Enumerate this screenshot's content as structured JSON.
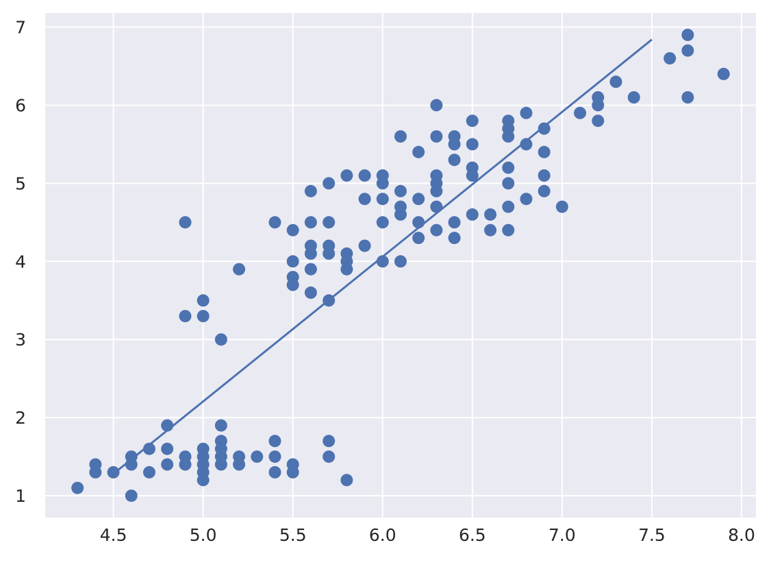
{
  "chart_data": {
    "type": "scatter",
    "title": "",
    "xlabel": "",
    "ylabel": "",
    "xlim": [
      4.12,
      8.08
    ],
    "ylim": [
      0.72,
      7.18
    ],
    "x_ticks": [
      4.5,
      5.0,
      5.5,
      6.0,
      6.5,
      7.0,
      7.5,
      8.0
    ],
    "x_tick_labels": [
      "4.5",
      "5.0",
      "5.5",
      "6.0",
      "6.5",
      "7.0",
      "7.5",
      "8.0"
    ],
    "y_ticks": [
      1,
      2,
      3,
      4,
      5,
      6,
      7
    ],
    "y_tick_labels": [
      "1",
      "2",
      "3",
      "4",
      "5",
      "6",
      "7"
    ],
    "grid": true,
    "colors": {
      "background": "#eaeaf2",
      "grid": "#ffffff",
      "series": "#4c72b0"
    },
    "series": [
      {
        "type": "scatter",
        "points": [
          [
            4.3,
            1.1
          ],
          [
            4.4,
            1.3
          ],
          [
            4.4,
            1.4
          ],
          [
            4.5,
            1.3
          ],
          [
            4.6,
            1.0
          ],
          [
            4.6,
            1.4
          ],
          [
            4.6,
            1.5
          ],
          [
            4.7,
            1.3
          ],
          [
            4.7,
            1.6
          ],
          [
            4.8,
            1.4
          ],
          [
            4.8,
            1.6
          ],
          [
            4.8,
            1.9
          ],
          [
            4.9,
            1.4
          ],
          [
            4.9,
            1.5
          ],
          [
            4.9,
            3.3
          ],
          [
            4.9,
            4.5
          ],
          [
            5.0,
            1.2
          ],
          [
            5.0,
            1.3
          ],
          [
            5.0,
            1.4
          ],
          [
            5.0,
            1.5
          ],
          [
            5.0,
            1.6
          ],
          [
            5.0,
            3.3
          ],
          [
            5.0,
            3.5
          ],
          [
            5.1,
            1.4
          ],
          [
            5.1,
            1.5
          ],
          [
            5.1,
            1.6
          ],
          [
            5.1,
            1.7
          ],
          [
            5.1,
            1.9
          ],
          [
            5.1,
            3.0
          ],
          [
            5.2,
            1.4
          ],
          [
            5.2,
            1.5
          ],
          [
            5.2,
            3.9
          ],
          [
            5.3,
            1.5
          ],
          [
            5.4,
            1.3
          ],
          [
            5.4,
            1.5
          ],
          [
            5.4,
            1.7
          ],
          [
            5.4,
            4.5
          ],
          [
            5.5,
            1.3
          ],
          [
            5.5,
            1.4
          ],
          [
            5.5,
            3.7
          ],
          [
            5.5,
            3.8
          ],
          [
            5.5,
            4.0
          ],
          [
            5.5,
            4.4
          ],
          [
            5.6,
            3.6
          ],
          [
            5.6,
            3.9
          ],
          [
            5.6,
            4.1
          ],
          [
            5.6,
            4.2
          ],
          [
            5.6,
            4.5
          ],
          [
            5.6,
            4.9
          ],
          [
            5.7,
            1.5
          ],
          [
            5.7,
            1.7
          ],
          [
            5.7,
            3.5
          ],
          [
            5.7,
            4.1
          ],
          [
            5.7,
            4.2
          ],
          [
            5.7,
            4.5
          ],
          [
            5.7,
            5.0
          ],
          [
            5.8,
            1.2
          ],
          [
            5.8,
            3.9
          ],
          [
            5.8,
            4.0
          ],
          [
            5.8,
            4.1
          ],
          [
            5.8,
            5.1
          ],
          [
            5.9,
            4.2
          ],
          [
            5.9,
            4.8
          ],
          [
            5.9,
            5.1
          ],
          [
            6.0,
            4.0
          ],
          [
            6.0,
            4.5
          ],
          [
            6.0,
            4.8
          ],
          [
            6.0,
            5.0
          ],
          [
            6.0,
            5.1
          ],
          [
            6.1,
            4.0
          ],
          [
            6.1,
            4.6
          ],
          [
            6.1,
            4.7
          ],
          [
            6.1,
            4.9
          ],
          [
            6.1,
            5.6
          ],
          [
            6.2,
            4.3
          ],
          [
            6.2,
            4.5
          ],
          [
            6.2,
            4.8
          ],
          [
            6.2,
            5.4
          ],
          [
            6.3,
            4.4
          ],
          [
            6.3,
            4.7
          ],
          [
            6.3,
            4.9
          ],
          [
            6.3,
            5.0
          ],
          [
            6.3,
            5.1
          ],
          [
            6.3,
            5.6
          ],
          [
            6.3,
            6.0
          ],
          [
            6.4,
            4.3
          ],
          [
            6.4,
            4.5
          ],
          [
            6.4,
            5.3
          ],
          [
            6.4,
            5.5
          ],
          [
            6.4,
            5.6
          ],
          [
            6.5,
            4.6
          ],
          [
            6.5,
            5.1
          ],
          [
            6.5,
            5.2
          ],
          [
            6.5,
            5.5
          ],
          [
            6.5,
            5.8
          ],
          [
            6.6,
            4.4
          ],
          [
            6.6,
            4.6
          ],
          [
            6.7,
            4.4
          ],
          [
            6.7,
            4.7
          ],
          [
            6.7,
            5.0
          ],
          [
            6.7,
            5.2
          ],
          [
            6.7,
            5.6
          ],
          [
            6.7,
            5.7
          ],
          [
            6.7,
            5.8
          ],
          [
            6.8,
            4.8
          ],
          [
            6.8,
            5.5
          ],
          [
            6.8,
            5.9
          ],
          [
            6.9,
            4.9
          ],
          [
            6.9,
            5.1
          ],
          [
            6.9,
            5.4
          ],
          [
            6.9,
            5.7
          ],
          [
            7.0,
            4.7
          ],
          [
            7.1,
            5.9
          ],
          [
            7.2,
            5.8
          ],
          [
            7.2,
            6.0
          ],
          [
            7.2,
            6.1
          ],
          [
            7.3,
            6.3
          ],
          [
            7.4,
            6.1
          ],
          [
            7.6,
            6.6
          ],
          [
            7.7,
            6.1
          ],
          [
            7.7,
            6.7
          ],
          [
            7.7,
            6.9
          ],
          [
            7.9,
            6.4
          ]
        ]
      },
      {
        "type": "line",
        "points": [
          [
            4.5,
            1.28
          ],
          [
            7.5,
            6.84
          ]
        ]
      }
    ]
  }
}
